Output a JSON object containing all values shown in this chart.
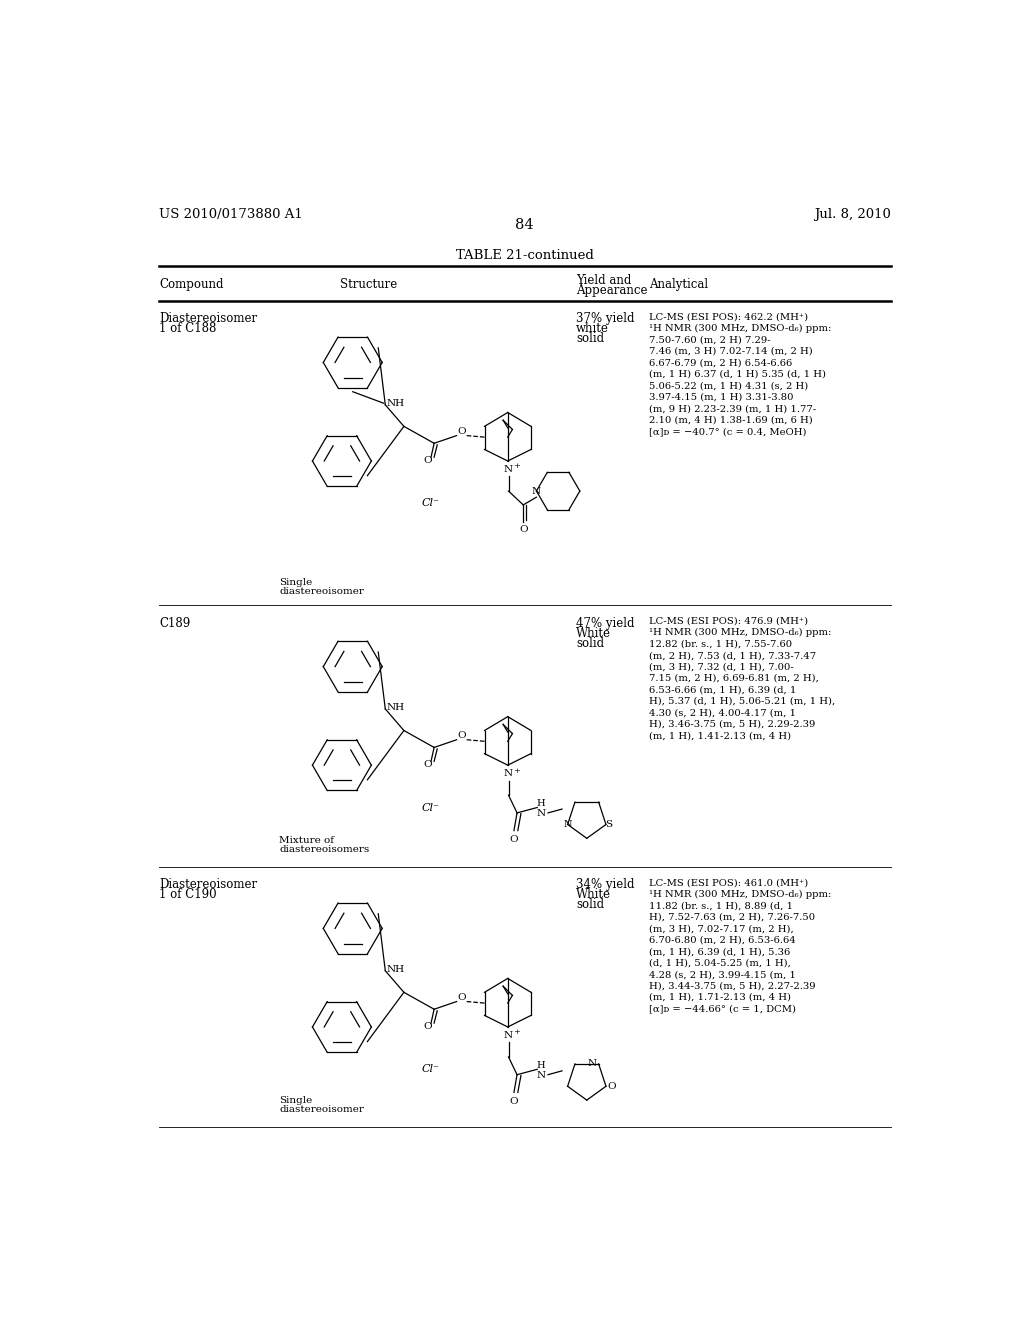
{
  "page_header_left": "US 2010/0173880 A1",
  "page_header_right": "Jul. 8, 2010",
  "page_number": "84",
  "table_title": "TABLE 21-continued",
  "bg_color": "#ffffff",
  "text_color": "#000000",
  "font_size_body": 8.5,
  "font_size_analytical": 7.2,
  "font_size_page": 9.5,
  "font_size_header": 9.5,
  "analytical_1": "LC-MS (ESI POS): 462.2 (MH⁺)\n¹H NMR (300 MHz, DMSO-d₆) ppm:\n7.50-7.60 (m, 2 H) 7.29-\n7.46 (m, 3 H) 7.02-7.14 (m, 2 H)\n6.67-6.79 (m, 2 H) 6.54-6.66\n(m, 1 H) 6.37 (d, 1 H) 5.35 (d, 1 H)\n5.06-5.22 (m, 1 H) 4.31 (s, 2 H)\n3.97-4.15 (m, 1 H) 3.31-3.80\n(m, 9 H) 2.23-2.39 (m, 1 H) 1.77-\n2.10 (m, 4 H) 1.38-1.69 (m, 6 H)\n[α]ᴅ = −40.7° (c = 0.4, MeOH)",
  "analytical_2": "LC-MS (ESI POS): 476.9 (MH⁺)\n¹H NMR (300 MHz, DMSO-d₆) ppm:\n12.82 (br. s., 1 H), 7.55-7.60\n(m, 2 H), 7.53 (d, 1 H), 7.33-7.47\n(m, 3 H), 7.32 (d, 1 H), 7.00-\n7.15 (m, 2 H), 6.69-6.81 (m, 2 H),\n6.53-6.66 (m, 1 H), 6.39 (d, 1\nH), 5.37 (d, 1 H), 5.06-5.21 (m, 1 H),\n4.30 (s, 2 H), 4.00-4.17 (m, 1\nH), 3.46-3.75 (m, 5 H), 2.29-2.39\n(m, 1 H), 1.41-2.13 (m, 4 H)",
  "analytical_3": "LC-MS (ESI POS): 461.0 (MH⁺)\n¹H NMR (300 MHz, DMSO-d₆) ppm:\n11.82 (br. s., 1 H), 8.89 (d, 1\nH), 7.52-7.63 (m, 2 H), 7.26-7.50\n(m, 3 H), 7.02-7.17 (m, 2 H),\n6.70-6.80 (m, 2 H), 6.53-6.64\n(m, 1 H), 6.39 (d, 1 H), 5.36\n(d, 1 H), 5.04-5.25 (m, 1 H),\n4.28 (s, 2 H), 3.99-4.15 (m, 1\nH), 3.44-3.75 (m, 5 H), 2.27-2.39\n(m, 1 H), 1.71-2.13 (m, 4 H)\n[α]ᴅ = −44.66° (c = 1, DCM)"
}
